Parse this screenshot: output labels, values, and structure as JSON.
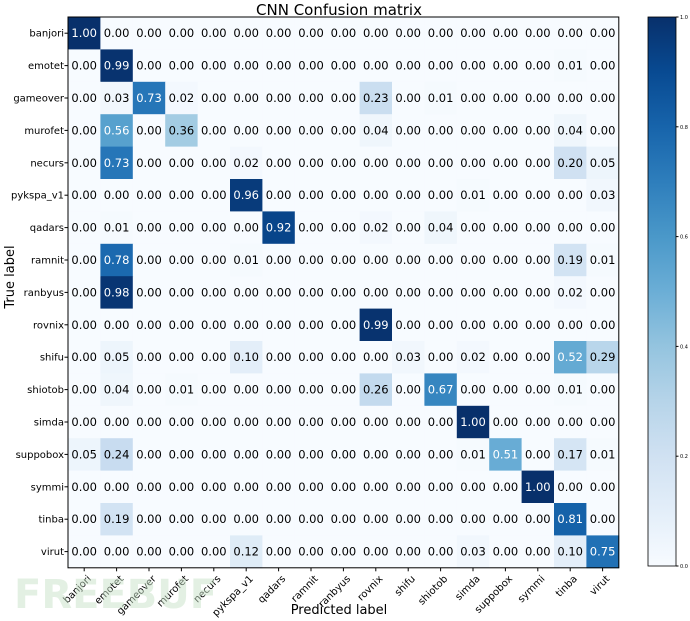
{
  "chart_data": {
    "type": "heatmap",
    "title": "CNN Confusion matrix",
    "xlabel": "Predicted label",
    "ylabel": "True label",
    "labels": [
      "banjori",
      "emotet",
      "gameover",
      "murofet",
      "necurs",
      "pykspa_v1",
      "qadars",
      "ramnit",
      "ranbyus",
      "rovnix",
      "shifu",
      "shiotob",
      "simda",
      "suppobox",
      "symmi",
      "tinba",
      "virut"
    ],
    "matrix": [
      [
        1.0,
        0.0,
        0.0,
        0.0,
        0.0,
        0.0,
        0.0,
        0.0,
        0.0,
        0.0,
        0.0,
        0.0,
        0.0,
        0.0,
        0.0,
        0.0,
        0.0
      ],
      [
        0.0,
        0.99,
        0.0,
        0.0,
        0.0,
        0.0,
        0.0,
        0.0,
        0.0,
        0.0,
        0.0,
        0.0,
        0.0,
        0.0,
        0.0,
        0.01,
        0.0
      ],
      [
        0.0,
        0.03,
        0.73,
        0.02,
        0.0,
        0.0,
        0.0,
        0.0,
        0.0,
        0.23,
        0.0,
        0.01,
        0.0,
        0.0,
        0.0,
        0.0,
        0.0
      ],
      [
        0.0,
        0.56,
        0.0,
        0.36,
        0.0,
        0.0,
        0.0,
        0.0,
        0.0,
        0.04,
        0.0,
        0.0,
        0.0,
        0.0,
        0.0,
        0.04,
        0.0
      ],
      [
        0.0,
        0.73,
        0.0,
        0.0,
        0.0,
        0.02,
        0.0,
        0.0,
        0.0,
        0.0,
        0.0,
        0.0,
        0.0,
        0.0,
        0.0,
        0.2,
        0.05
      ],
      [
        0.0,
        0.0,
        0.0,
        0.0,
        0.0,
        0.96,
        0.0,
        0.0,
        0.0,
        0.0,
        0.0,
        0.0,
        0.01,
        0.0,
        0.0,
        0.0,
        0.03
      ],
      [
        0.0,
        0.01,
        0.0,
        0.0,
        0.0,
        0.0,
        0.92,
        0.0,
        0.0,
        0.02,
        0.0,
        0.04,
        0.0,
        0.0,
        0.0,
        0.0,
        0.0
      ],
      [
        0.0,
        0.78,
        0.0,
        0.0,
        0.0,
        0.01,
        0.0,
        0.0,
        0.0,
        0.0,
        0.0,
        0.0,
        0.0,
        0.0,
        0.0,
        0.19,
        0.01
      ],
      [
        0.0,
        0.98,
        0.0,
        0.0,
        0.0,
        0.0,
        0.0,
        0.0,
        0.0,
        0.0,
        0.0,
        0.0,
        0.0,
        0.0,
        0.0,
        0.02,
        0.0
      ],
      [
        0.0,
        0.0,
        0.0,
        0.0,
        0.0,
        0.0,
        0.0,
        0.0,
        0.0,
        0.99,
        0.0,
        0.0,
        0.0,
        0.0,
        0.0,
        0.0,
        0.0
      ],
      [
        0.0,
        0.05,
        0.0,
        0.0,
        0.0,
        0.1,
        0.0,
        0.0,
        0.0,
        0.0,
        0.03,
        0.0,
        0.02,
        0.0,
        0.0,
        0.52,
        0.29
      ],
      [
        0.0,
        0.04,
        0.0,
        0.01,
        0.0,
        0.0,
        0.0,
        0.0,
        0.0,
        0.26,
        0.0,
        0.67,
        0.0,
        0.0,
        0.0,
        0.01,
        0.0
      ],
      [
        0.0,
        0.0,
        0.0,
        0.0,
        0.0,
        0.0,
        0.0,
        0.0,
        0.0,
        0.0,
        0.0,
        0.0,
        1.0,
        0.0,
        0.0,
        0.0,
        0.0
      ],
      [
        0.05,
        0.24,
        0.0,
        0.0,
        0.0,
        0.0,
        0.0,
        0.0,
        0.0,
        0.0,
        0.0,
        0.0,
        0.01,
        0.51,
        0.0,
        0.17,
        0.01
      ],
      [
        0.0,
        0.0,
        0.0,
        0.0,
        0.0,
        0.0,
        0.0,
        0.0,
        0.0,
        0.0,
        0.0,
        0.0,
        0.0,
        0.0,
        1.0,
        0.0,
        0.0
      ],
      [
        0.0,
        0.19,
        0.0,
        0.0,
        0.0,
        0.0,
        0.0,
        0.0,
        0.0,
        0.0,
        0.0,
        0.0,
        0.0,
        0.0,
        0.0,
        0.81,
        0.0
      ],
      [
        0.0,
        0.0,
        0.0,
        0.0,
        0.0,
        0.12,
        0.0,
        0.0,
        0.0,
        0.0,
        0.0,
        0.0,
        0.03,
        0.0,
        0.0,
        0.1,
        0.75
      ]
    ],
    "colorbar": {
      "colormap": "Blues",
      "range": [
        0.0,
        1.0
      ],
      "ticks": [
        "0.0",
        "0.2",
        "0.4",
        "0.6",
        "0.8",
        "1.0"
      ]
    },
    "grid": false,
    "value_format": "2 decimals"
  },
  "watermark": "FREEBUF",
  "colors": {
    "low": "#f7fbff",
    "high": "#08306b",
    "text_dark": "#000000",
    "text_light": "#ffffff"
  }
}
